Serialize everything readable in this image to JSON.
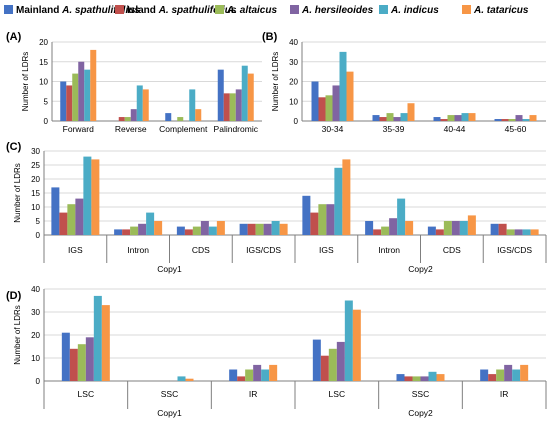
{
  "legend": [
    {
      "prefix": "Mainland ",
      "species": "A. spathulifolius",
      "color": "#4472C4"
    },
    {
      "prefix": "Island ",
      "species": "A. spathulifolius",
      "color": "#C0504D"
    },
    {
      "prefix": "",
      "species": "A. altaicus",
      "color": "#9BBB59"
    },
    {
      "prefix": "",
      "species": "A. hersileoides",
      "color": "#8064A2"
    },
    {
      "prefix": "",
      "species": "A. indicus",
      "color": "#4BACC6"
    },
    {
      "prefix": "",
      "species": "A. tataricus",
      "color": "#F79646"
    }
  ],
  "chart_data": [
    {
      "panel": "(A)",
      "type": "bar",
      "ylabel": "Number of LDRs",
      "ylim": [
        0,
        20
      ],
      "yticks": [
        0,
        5,
        10,
        15,
        20
      ],
      "grid": true,
      "categories": [
        "Forward",
        "Reverse",
        "Complement",
        "Palindromic"
      ],
      "series": [
        {
          "name": "Mainland A. spathulifolius",
          "values": [
            10,
            0,
            2,
            13
          ]
        },
        {
          "name": "Island A. spathulifolius",
          "values": [
            9,
            1,
            0,
            7
          ]
        },
        {
          "name": "A. altaicus",
          "values": [
            12,
            1,
            1,
            7
          ]
        },
        {
          "name": "A. hersileoides",
          "values": [
            15,
            3,
            0,
            8
          ]
        },
        {
          "name": "A. indicus",
          "values": [
            13,
            9,
            8,
            14
          ]
        },
        {
          "name": "A. tataricus",
          "values": [
            18,
            8,
            3,
            12
          ]
        }
      ]
    },
    {
      "panel": "(B)",
      "type": "bar",
      "ylabel": "Number of LDRs",
      "ylim": [
        0,
        40
      ],
      "yticks": [
        0,
        10,
        20,
        30,
        40
      ],
      "grid": true,
      "categories": [
        "30-34",
        "35-39",
        "40-44",
        "45-60"
      ],
      "series": [
        {
          "name": "Mainland A. spathulifolius",
          "values": [
            20,
            3,
            2,
            1
          ]
        },
        {
          "name": "Island A. spathulifolius",
          "values": [
            12,
            2,
            1,
            1
          ]
        },
        {
          "name": "A. altaicus",
          "values": [
            13,
            4,
            3,
            1
          ]
        },
        {
          "name": "A. hersileoides",
          "values": [
            18,
            2,
            3,
            3
          ]
        },
        {
          "name": "A. indicus",
          "values": [
            35,
            4,
            4,
            1
          ]
        },
        {
          "name": "A. tataricus",
          "values": [
            25,
            9,
            4,
            3
          ]
        }
      ]
    },
    {
      "panel": "(C)",
      "type": "bar",
      "ylabel": "Number of LDRs",
      "ylim": [
        0,
        30
      ],
      "yticks": [
        0,
        5,
        10,
        15,
        20,
        25,
        30
      ],
      "grid": true,
      "categories": [
        "IGS",
        "Intron",
        "CDS",
        "IGS/CDS",
        "IGS",
        "Intron",
        "CDS",
        "IGS/CDS"
      ],
      "groups": [
        {
          "label": "Copy1",
          "count": 4
        },
        {
          "label": "Copy2",
          "count": 4
        }
      ],
      "series": [
        {
          "name": "Mainland A. spathulifolius",
          "values": [
            17,
            2,
            3,
            4,
            14,
            5,
            3,
            4
          ]
        },
        {
          "name": "Island A. spathulifolius",
          "values": [
            8,
            2,
            2,
            4,
            8,
            2,
            2,
            4
          ]
        },
        {
          "name": "A. altaicus",
          "values": [
            11,
            3,
            3,
            4,
            11,
            3,
            5,
            2
          ]
        },
        {
          "name": "A. hersileoides",
          "values": [
            13,
            4,
            5,
            4,
            11,
            6,
            5,
            2
          ]
        },
        {
          "name": "A. indicus",
          "values": [
            28,
            8,
            3,
            5,
            24,
            13,
            5,
            2
          ]
        },
        {
          "name": "A. tataricus",
          "values": [
            27,
            5,
            5,
            4,
            27,
            5,
            7,
            2
          ]
        }
      ]
    },
    {
      "panel": "(D)",
      "type": "bar",
      "ylabel": "Number of LDRs",
      "ylim": [
        0,
        40
      ],
      "yticks": [
        0,
        10,
        20,
        30,
        40
      ],
      "grid": true,
      "categories": [
        "LSC",
        "SSC",
        "IR",
        "LSC",
        "SSC",
        "IR"
      ],
      "groups": [
        {
          "label": "Copy1",
          "count": 3
        },
        {
          "label": "Copy2",
          "count": 3
        }
      ],
      "series": [
        {
          "name": "Mainland A. spathulifolius",
          "values": [
            21,
            0,
            5,
            18,
            3,
            5
          ]
        },
        {
          "name": "Island A. spathulifolius",
          "values": [
            14,
            0,
            2,
            11,
            2,
            3
          ]
        },
        {
          "name": "A. altaicus",
          "values": [
            16,
            0,
            5,
            14,
            2,
            5
          ]
        },
        {
          "name": "A. hersileoides",
          "values": [
            19,
            0,
            7,
            17,
            2,
            7
          ]
        },
        {
          "name": "A. indicus",
          "values": [
            37,
            2,
            5,
            35,
            4,
            5
          ]
        },
        {
          "name": "A. tataricus",
          "values": [
            33,
            1,
            7,
            31,
            3,
            7
          ]
        }
      ]
    }
  ]
}
